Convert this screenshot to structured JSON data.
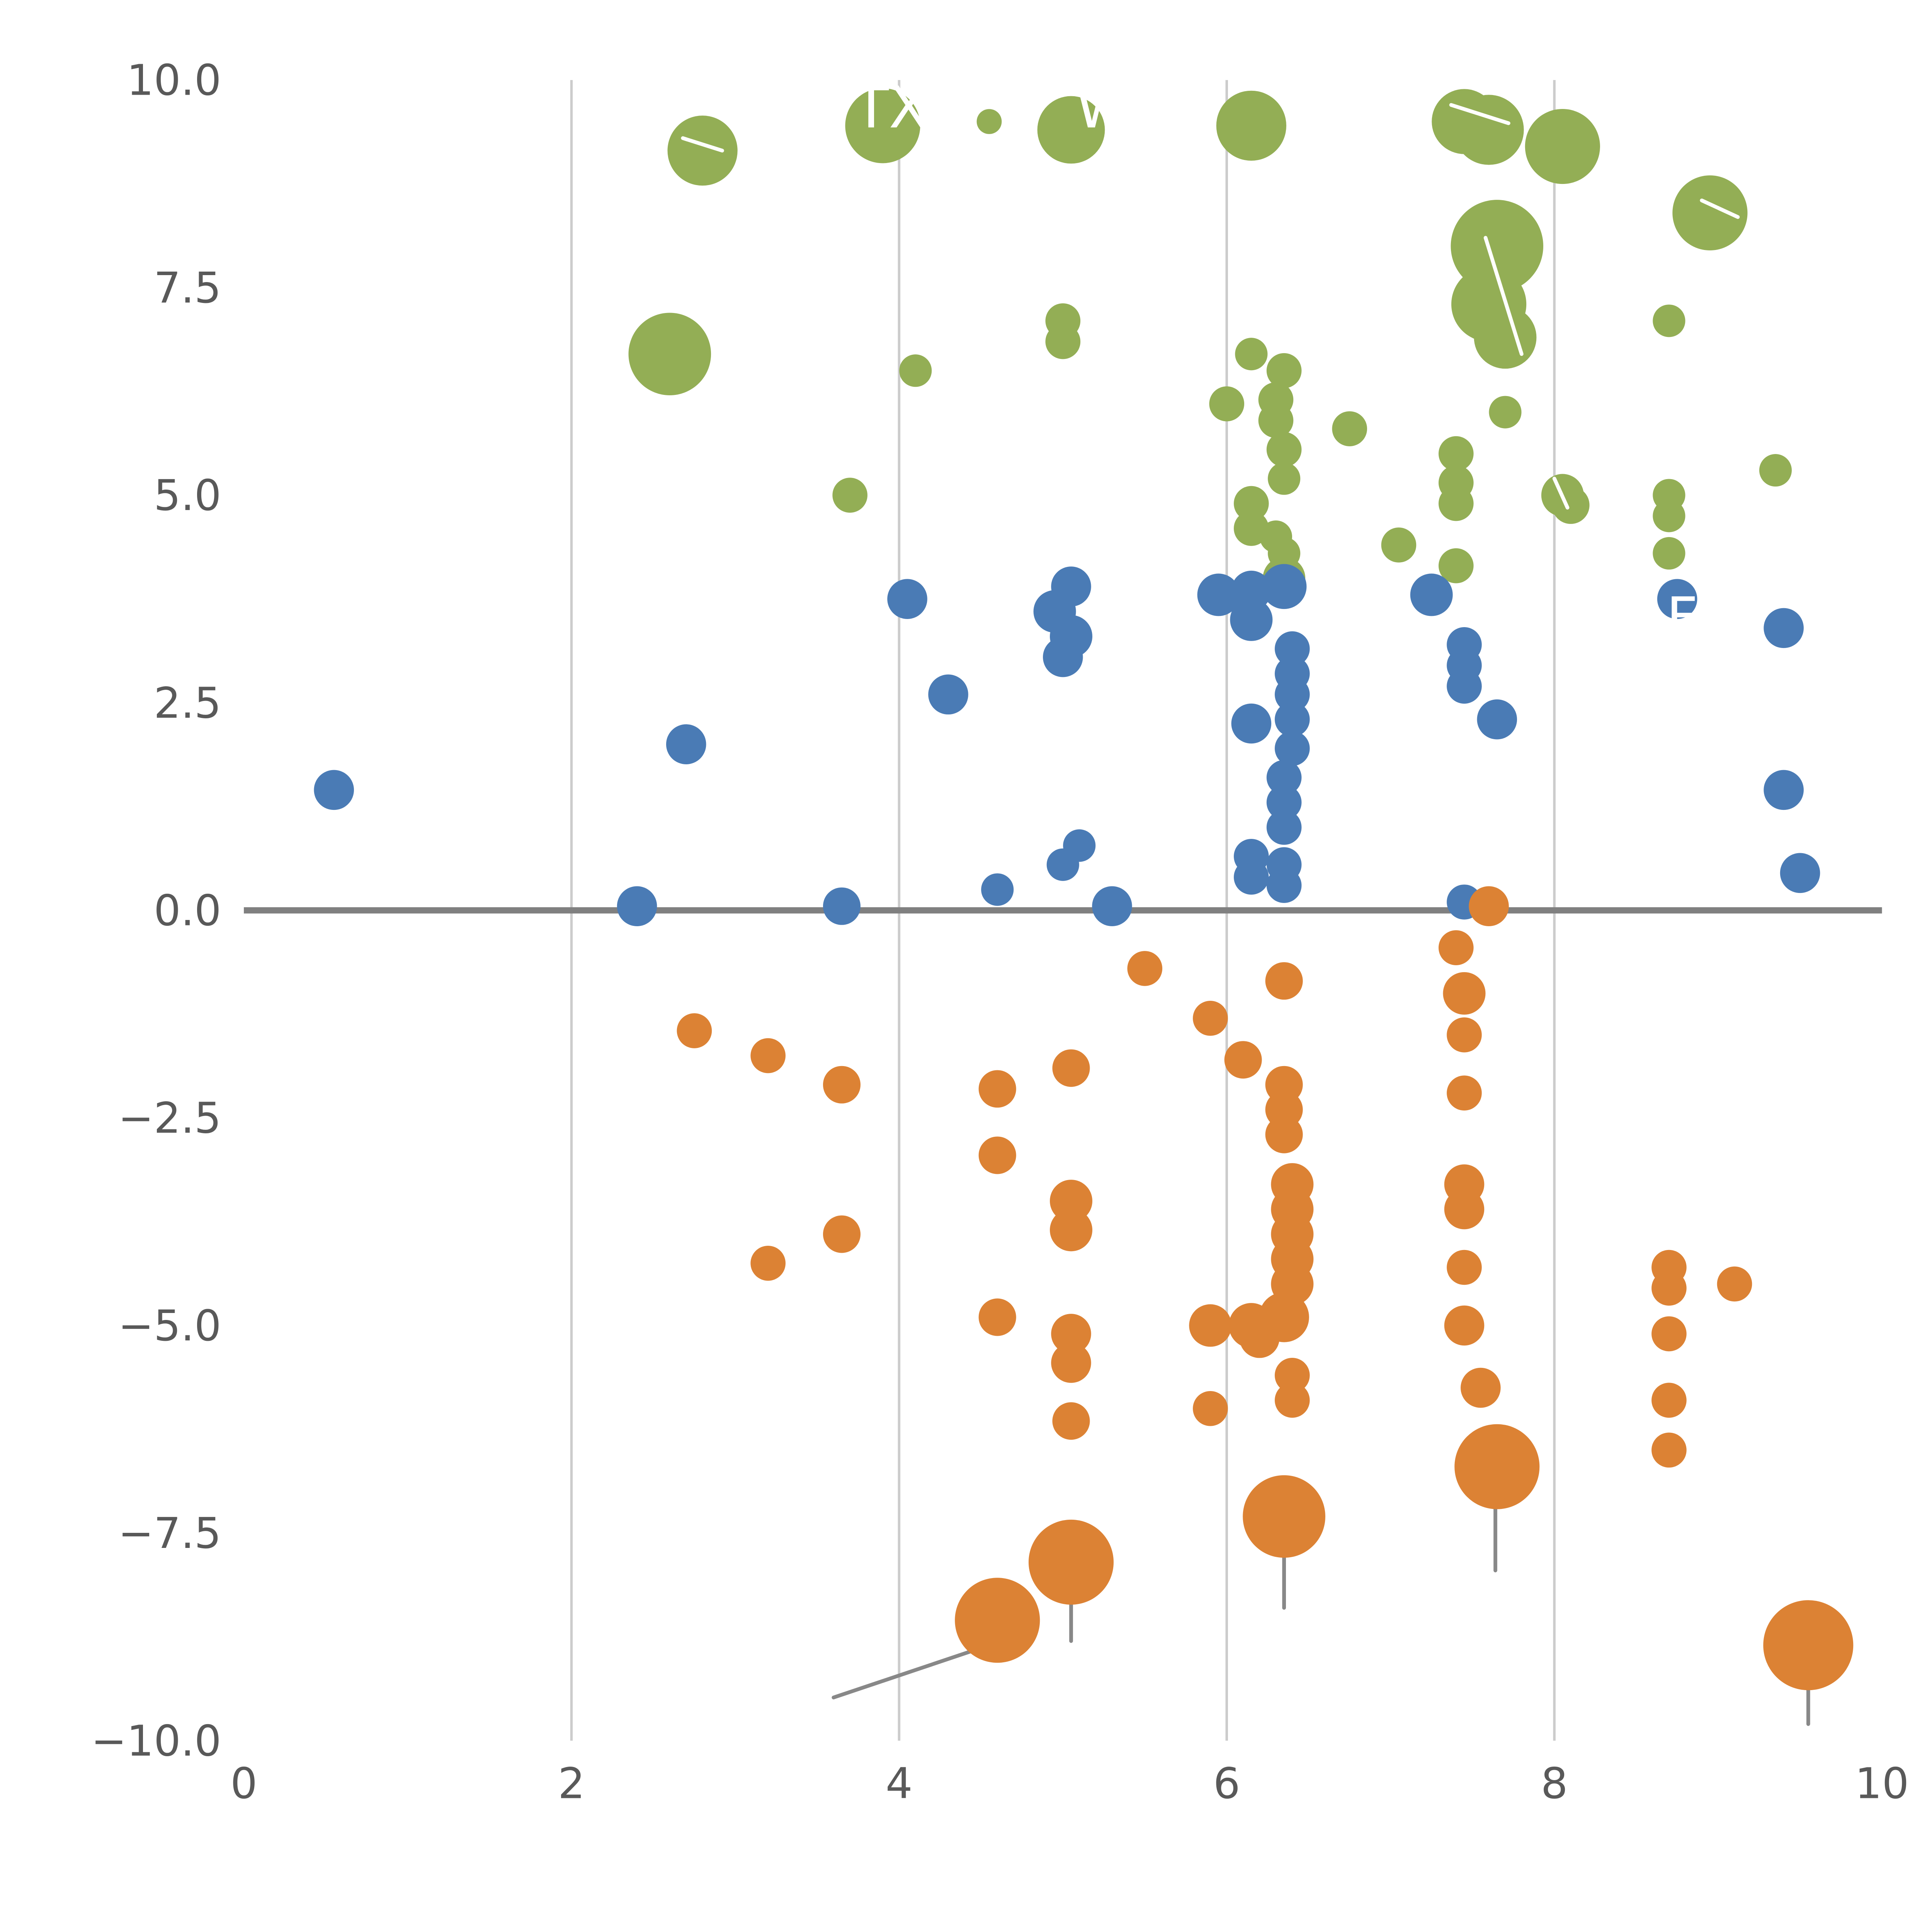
{
  "page": {
    "background": "#ffffff",
    "title": ""
  },
  "axes": {
    "tick_color": "#595959",
    "grid_color": "#cccccc",
    "zero_line_color": "#808080",
    "x_tick_labels": [
      "0",
      "2",
      "4",
      "6",
      "8",
      "10"
    ],
    "y_tick_labels": [
      "10.0",
      "7.5",
      "5.0",
      "2.5",
      "0.0",
      "−2.5",
      "−5.0",
      "−7.5",
      "−10.0"
    ]
  },
  "chart_data": {
    "type": "scatter",
    "title": "",
    "xlabel": "",
    "ylabel": "",
    "xlim": [
      0,
      10
    ],
    "ylim": [
      -10,
      10
    ],
    "x_ticks": [
      0,
      2,
      4,
      6,
      8,
      10
    ],
    "y_ticks": [
      10.0,
      7.5,
      5.0,
      2.5,
      0.0,
      -2.5,
      -5.0,
      -7.5,
      -10.0
    ],
    "grid": {
      "vertical_x": [
        2,
        4,
        6,
        8
      ],
      "horizontal": false
    },
    "zero_line": {
      "y": 0
    },
    "legend": "none",
    "point_format": "[x, y, radius_px]",
    "series": [
      {
        "name": "green-group",
        "color": "#93ae55",
        "points": [
          [
            2.8,
            9.15,
            28
          ],
          [
            3.9,
            9.45,
            30
          ],
          [
            4.55,
            9.5,
            10
          ],
          [
            5.05,
            9.4,
            27
          ],
          [
            6.15,
            9.45,
            28
          ],
          [
            7.45,
            9.5,
            26
          ],
          [
            7.6,
            9.4,
            28
          ],
          [
            8.05,
            9.2,
            30
          ],
          [
            8.95,
            8.4,
            30
          ],
          [
            7.65,
            8.0,
            37
          ],
          [
            7.6,
            7.3,
            30
          ],
          [
            5.0,
            7.1,
            14
          ],
          [
            5.0,
            6.85,
            14
          ],
          [
            8.7,
            7.1,
            13
          ],
          [
            2.6,
            6.7,
            33
          ],
          [
            4.1,
            6.5,
            13
          ],
          [
            6.15,
            6.7,
            13
          ],
          [
            6.35,
            6.5,
            14
          ],
          [
            7.7,
            6.9,
            25
          ],
          [
            6.0,
            6.1,
            14
          ],
          [
            6.3,
            6.15,
            14
          ],
          [
            6.3,
            5.9,
            14
          ],
          [
            6.35,
            5.55,
            14
          ],
          [
            6.75,
            5.8,
            14
          ],
          [
            7.4,
            5.5,
            14
          ],
          [
            7.4,
            5.15,
            14
          ],
          [
            7.4,
            4.9,
            14
          ],
          [
            7.7,
            6.0,
            13
          ],
          [
            3.7,
            5.0,
            14
          ],
          [
            6.15,
            4.9,
            14
          ],
          [
            6.15,
            4.6,
            14
          ],
          [
            6.3,
            4.5,
            13
          ],
          [
            6.35,
            4.3,
            13
          ],
          [
            6.35,
            5.2,
            13
          ],
          [
            8.05,
            5.0,
            17
          ],
          [
            8.1,
            4.88,
            15
          ],
          [
            8.7,
            5.0,
            13
          ],
          [
            8.7,
            4.75,
            13
          ],
          [
            8.7,
            4.3,
            13
          ],
          [
            9.35,
            5.3,
            13
          ],
          [
            7.05,
            4.4,
            14
          ],
          [
            7.4,
            4.15,
            14
          ],
          [
            6.35,
            4.0,
            17
          ]
        ]
      },
      {
        "name": "blue-group",
        "color": "#4a7bb5",
        "points": [
          [
            0.55,
            1.45,
            16
          ],
          [
            2.4,
            0.05,
            16
          ],
          [
            2.7,
            2.0,
            16
          ],
          [
            3.65,
            0.05,
            15
          ],
          [
            4.05,
            3.75,
            16
          ],
          [
            4.3,
            2.6,
            16
          ],
          [
            4.6,
            0.25,
            13
          ],
          [
            4.95,
            3.6,
            17
          ],
          [
            5.05,
            3.9,
            16
          ],
          [
            5.05,
            3.3,
            17
          ],
          [
            5.0,
            3.05,
            16
          ],
          [
            5.0,
            0.55,
            13
          ],
          [
            5.1,
            0.78,
            13
          ],
          [
            5.3,
            0.05,
            16
          ],
          [
            5.95,
            3.8,
            17
          ],
          [
            6.15,
            3.85,
            16
          ],
          [
            6.15,
            3.5,
            17
          ],
          [
            6.35,
            3.9,
            18
          ],
          [
            6.4,
            3.15,
            14
          ],
          [
            6.4,
            2.85,
            14
          ],
          [
            6.4,
            2.6,
            14
          ],
          [
            6.15,
            2.25,
            16
          ],
          [
            6.4,
            2.3,
            14
          ],
          [
            6.4,
            1.95,
            14
          ],
          [
            6.35,
            1.6,
            14
          ],
          [
            6.35,
            1.3,
            14
          ],
          [
            6.35,
            1.0,
            14
          ],
          [
            6.15,
            0.65,
            14
          ],
          [
            6.15,
            0.4,
            14
          ],
          [
            6.35,
            0.55,
            14
          ],
          [
            6.35,
            0.3,
            14
          ],
          [
            7.25,
            3.8,
            17
          ],
          [
            7.45,
            3.2,
            14
          ],
          [
            7.45,
            2.95,
            14
          ],
          [
            7.45,
            2.7,
            14
          ],
          [
            7.65,
            2.3,
            16
          ],
          [
            7.45,
            0.1,
            14
          ],
          [
            8.75,
            3.75,
            16
          ],
          [
            9.4,
            3.4,
            16
          ],
          [
            9.4,
            1.45,
            16
          ],
          [
            9.5,
            0.45,
            16
          ]
        ]
      },
      {
        "name": "orange-group",
        "color": "#dc8234",
        "points": [
          [
            2.75,
            -1.45,
            14
          ],
          [
            3.2,
            -1.75,
            14
          ],
          [
            3.2,
            -4.25,
            14
          ],
          [
            3.65,
            -2.1,
            15
          ],
          [
            3.65,
            -3.9,
            15
          ],
          [
            4.6,
            -2.15,
            15
          ],
          [
            4.6,
            -2.95,
            15
          ],
          [
            4.6,
            -4.9,
            15
          ],
          [
            5.05,
            -1.9,
            15
          ],
          [
            5.05,
            -3.5,
            17
          ],
          [
            5.05,
            -3.85,
            17
          ],
          [
            5.05,
            -5.1,
            16
          ],
          [
            5.05,
            -5.45,
            16
          ],
          [
            5.05,
            -6.15,
            15
          ],
          [
            5.5,
            -0.7,
            14
          ],
          [
            5.9,
            -1.3,
            14
          ],
          [
            5.9,
            -5.0,
            17
          ],
          [
            5.9,
            -6.0,
            14
          ],
          [
            6.1,
            -1.8,
            15
          ],
          [
            6.15,
            -5.0,
            18
          ],
          [
            6.35,
            -0.85,
            15
          ],
          [
            6.35,
            -2.1,
            15
          ],
          [
            6.35,
            -2.4,
            15
          ],
          [
            6.35,
            -2.7,
            15
          ],
          [
            6.4,
            -3.3,
            17
          ],
          [
            6.4,
            -3.6,
            17
          ],
          [
            6.4,
            -3.9,
            17
          ],
          [
            6.4,
            -4.2,
            17
          ],
          [
            6.4,
            -4.5,
            17
          ],
          [
            6.35,
            -4.9,
            20
          ],
          [
            6.2,
            -5.15,
            16
          ],
          [
            6.4,
            -5.6,
            14
          ],
          [
            6.4,
            -5.9,
            14
          ],
          [
            6.35,
            -7.3,
            33
          ],
          [
            7.4,
            -0.45,
            14
          ],
          [
            7.45,
            -1.0,
            17
          ],
          [
            7.45,
            -1.5,
            14
          ],
          [
            7.45,
            -2.2,
            14
          ],
          [
            7.45,
            -3.3,
            16
          ],
          [
            7.45,
            -3.6,
            16
          ],
          [
            7.45,
            -4.3,
            14
          ],
          [
            7.45,
            -5.0,
            16
          ],
          [
            7.55,
            -5.75,
            16
          ],
          [
            7.6,
            0.05,
            16
          ],
          [
            7.65,
            -6.7,
            34
          ],
          [
            8.7,
            -4.3,
            14
          ],
          [
            8.7,
            -4.55,
            14
          ],
          [
            8.7,
            -5.1,
            14
          ],
          [
            8.7,
            -5.9,
            14
          ],
          [
            8.7,
            -6.5,
            14
          ],
          [
            9.1,
            -4.5,
            14
          ],
          [
            4.6,
            -8.55,
            34
          ],
          [
            5.05,
            -7.85,
            34
          ],
          [
            9.55,
            -8.85,
            36
          ]
        ]
      }
    ],
    "annotations": [
      {
        "text": "TX",
        "x": 3.95,
        "y": 9.62,
        "color": "#ffffff",
        "size": 46
      },
      {
        "text": "W",
        "x": 5.25,
        "y": 9.62,
        "color": "#ffffff",
        "size": 46
      },
      {
        "text": "F",
        "x": 8.78,
        "y": 3.48,
        "color": "#ffffff",
        "size": 44
      }
    ],
    "leader_lines": [
      {
        "x1": 4.55,
        "y1": -8.85,
        "x2": 3.6,
        "y2": -9.48,
        "color": "#888888"
      },
      {
        "x1": 5.05,
        "y1": -8.0,
        "x2": 5.05,
        "y2": -8.8,
        "color": "#888888"
      },
      {
        "x1": 6.35,
        "y1": -7.45,
        "x2": 6.35,
        "y2": -8.4,
        "color": "#888888"
      },
      {
        "x1": 7.64,
        "y1": -6.9,
        "x2": 7.64,
        "y2": -7.95,
        "color": "#888888"
      },
      {
        "x1": 9.55,
        "y1": -8.95,
        "x2": 9.55,
        "y2": -9.8,
        "color": "#888888"
      },
      {
        "x1": 2.68,
        "y1": 9.3,
        "x2": 2.92,
        "y2": 9.15,
        "color": "#ffffff"
      },
      {
        "x1": 7.37,
        "y1": 9.7,
        "x2": 7.72,
        "y2": 9.48,
        "color": "#ffffff"
      },
      {
        "x1": 7.58,
        "y1": 8.1,
        "x2": 7.8,
        "y2": 6.7,
        "color": "#ffffff"
      },
      {
        "x1": 8.0,
        "y1": 5.2,
        "x2": 8.08,
        "y2": 4.85,
        "color": "#ffffff"
      },
      {
        "x1": 8.9,
        "y1": 8.55,
        "x2": 9.12,
        "y2": 8.35,
        "color": "#ffffff"
      }
    ]
  }
}
